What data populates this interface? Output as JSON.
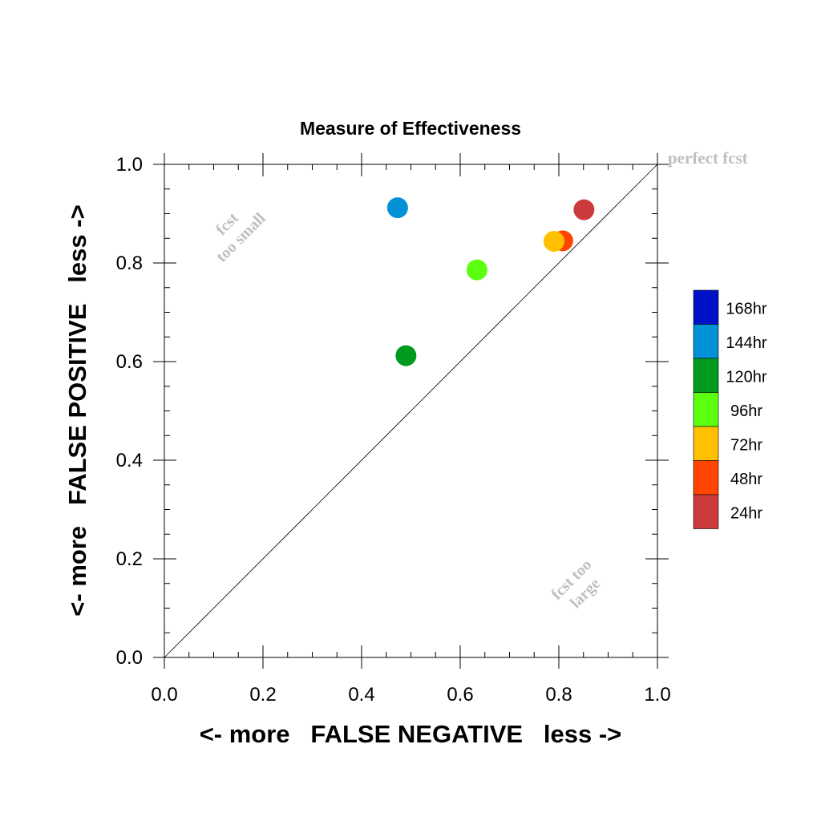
{
  "chart_data": {
    "type": "scatter",
    "title": "Measure of Effectiveness",
    "xlabel": "<- more   FALSE NEGATIVE   less ->",
    "ylabel": "<- more   FALSE POSITIVE   less ->",
    "xlim": [
      0.0,
      1.0
    ],
    "ylim": [
      0.0,
      1.0
    ],
    "x_ticks": [
      "0.0",
      "0.2",
      "0.4",
      "0.6",
      "0.8",
      "1.0"
    ],
    "y_ticks": [
      "0.0",
      "0.2",
      "0.4",
      "0.6",
      "0.8",
      "1.0"
    ],
    "grid": false,
    "reference_line": {
      "x": [
        0.0,
        1.0
      ],
      "y": [
        0.0,
        1.0
      ]
    },
    "annotations": {
      "perfect": "perfect fcst",
      "small_line1": "fcst",
      "small_line2": "too small",
      "large_line1": "fcst too",
      "large_line2": "large"
    },
    "series": [
      {
        "name": "24hr",
        "x": [
          0.851
        ],
        "y": [
          0.908
        ],
        "color": "#cc3b3b"
      },
      {
        "name": "48hr",
        "x": [
          0.808
        ],
        "y": [
          0.845
        ],
        "color": "#ff4500"
      },
      {
        "name": "72hr",
        "x": [
          0.79
        ],
        "y": [
          0.844
        ],
        "color": "#ffc000"
      },
      {
        "name": "96hr",
        "x": [
          0.634
        ],
        "y": [
          0.786
        ],
        "color": "#5bff10"
      },
      {
        "name": "120hr",
        "x": [
          0.49
        ],
        "y": [
          0.612
        ],
        "color": "#009a1e"
      },
      {
        "name": "144hr",
        "x": [
          0.473
        ],
        "y": [
          0.912
        ],
        "color": "#0091d6"
      },
      {
        "name": "168hr",
        "x": [],
        "y": [],
        "color": "#0012c8"
      }
    ],
    "legend": {
      "placement": "right",
      "order": [
        "168hr",
        "144hr",
        "120hr",
        "96hr",
        "72hr",
        "48hr",
        "24hr"
      ]
    }
  }
}
